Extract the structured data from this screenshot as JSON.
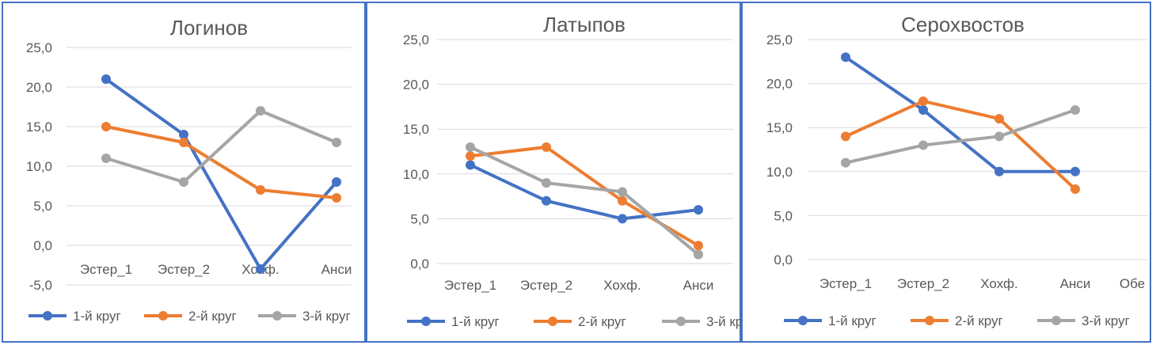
{
  "colors": {
    "series1": "#4472c4",
    "series2": "#ed7d31",
    "series3": "#a5a5a5",
    "border": "#4472c4",
    "grid": "#d9d9d9",
    "text": "#595959"
  },
  "legend": [
    "1-й круг",
    "2-й круг",
    "3-й круг"
  ],
  "chart_data": [
    {
      "type": "line",
      "title": "Логинов",
      "categories": [
        "Эстер_1",
        "Эстер_2",
        "Хохф.",
        "Анси"
      ],
      "y_ticks": [
        "-5,0",
        "0,0",
        "5,0",
        "10,0",
        "15,0",
        "20,0",
        "25,0"
      ],
      "ylim": [
        -5,
        25
      ],
      "grid": true,
      "legend_position": "bottom",
      "series": [
        {
          "name": "1-й круг",
          "values": [
            21,
            14,
            -3,
            8
          ]
        },
        {
          "name": "2-й круг",
          "values": [
            15,
            13,
            7,
            6
          ]
        },
        {
          "name": "3-й круг",
          "values": [
            11,
            8,
            17,
            13
          ]
        }
      ]
    },
    {
      "type": "line",
      "title": "Латыпов",
      "categories": [
        "Эстер_1",
        "Эстер_2",
        "Хохф.",
        "Анси"
      ],
      "y_ticks": [
        "0,0",
        "5,0",
        "10,0",
        "15,0",
        "20,0",
        "25,0"
      ],
      "ylim": [
        0,
        25
      ],
      "grid": true,
      "legend_position": "bottom",
      "series": [
        {
          "name": "1-й круг",
          "values": [
            11,
            7,
            5,
            6
          ]
        },
        {
          "name": "2-й круг",
          "values": [
            12,
            13,
            7,
            2
          ]
        },
        {
          "name": "3-й круг",
          "values": [
            13,
            9,
            8,
            1
          ]
        }
      ]
    },
    {
      "type": "line",
      "title": "Серохвостов",
      "categories": [
        "Эстер_1",
        "Эстер_2",
        "Хохф.",
        "Анси",
        "Обе"
      ],
      "y_ticks": [
        "0,0",
        "5,0",
        "10,0",
        "15,0",
        "20,0",
        "25,0"
      ],
      "ylim": [
        0,
        25
      ],
      "grid": true,
      "legend_position": "bottom",
      "series": [
        {
          "name": "1-й круг",
          "values": [
            23,
            17,
            10,
            10,
            null
          ]
        },
        {
          "name": "2-й круг",
          "values": [
            14,
            18,
            16,
            8,
            null
          ]
        },
        {
          "name": "3-й круг",
          "values": [
            11,
            13,
            14,
            17,
            null
          ]
        }
      ]
    }
  ]
}
